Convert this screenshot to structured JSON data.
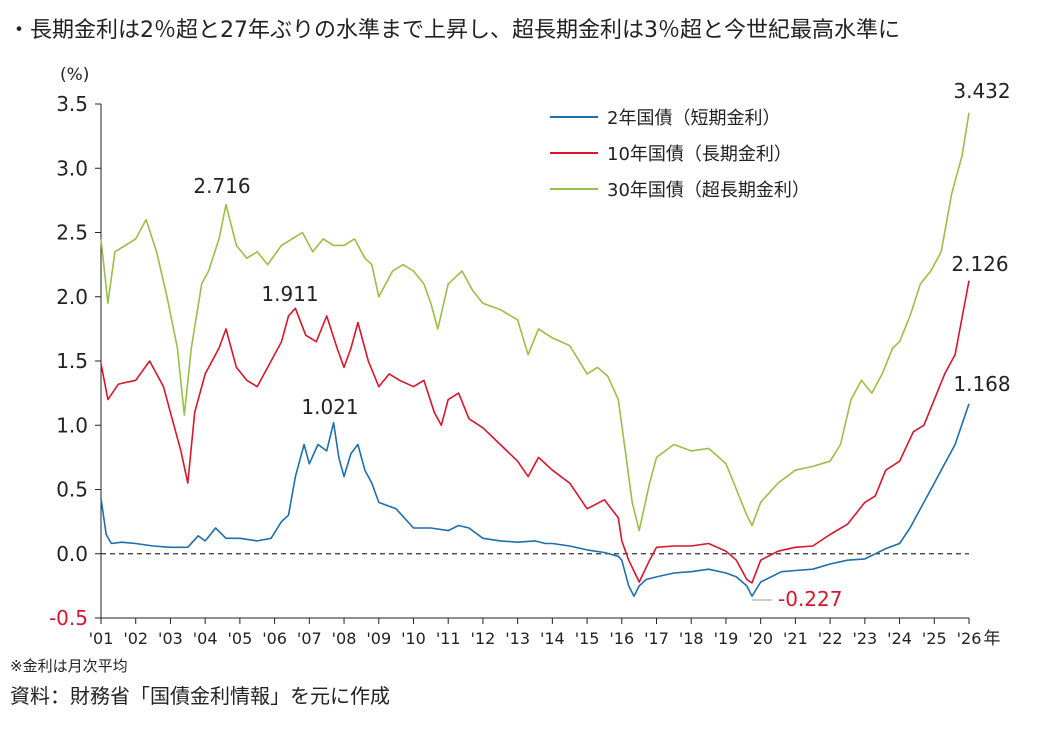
{
  "title": "・長期金利は2％超と27年ぶりの水準まで上昇し、超長期金利は3％超と今世紀最高水準に",
  "note": "※金利は月次平均",
  "source": "資料：財務省「国債金利情報」を元に作成",
  "colors": {
    "two_year": "#1f6fa8",
    "ten_year": "#d8152b",
    "thirty_year": "#98c045",
    "text": "#222222",
    "negative_label": "#d8152b"
  },
  "chart_data": {
    "type": "line",
    "ylabel": "(%)",
    "year_unit": "年",
    "ylim": [
      -0.5,
      3.5
    ],
    "yticks": [
      {
        "v": 3.5,
        "label": "3.5"
      },
      {
        "v": 3.0,
        "label": "3.0"
      },
      {
        "v": 2.5,
        "label": "2.5"
      },
      {
        "v": 2.0,
        "label": "2.0"
      },
      {
        "v": 1.5,
        "label": "1.5"
      },
      {
        "v": 1.0,
        "label": "1.0"
      },
      {
        "v": 0.5,
        "label": "0.5"
      },
      {
        "v": 0.0,
        "label": "0.0"
      },
      {
        "v": -0.5,
        "label": "-0.5"
      }
    ],
    "xlim": [
      2001,
      2026
    ],
    "xticks": [
      {
        "v": 2001,
        "label": "'01"
      },
      {
        "v": 2002,
        "label": "'02"
      },
      {
        "v": 2003,
        "label": "'03"
      },
      {
        "v": 2004,
        "label": "'04"
      },
      {
        "v": 2005,
        "label": "'05"
      },
      {
        "v": 2006,
        "label": "'06"
      },
      {
        "v": 2007,
        "label": "'07"
      },
      {
        "v": 2008,
        "label": "'08"
      },
      {
        "v": 2009,
        "label": "'09"
      },
      {
        "v": 2010,
        "label": "'10"
      },
      {
        "v": 2011,
        "label": "'11"
      },
      {
        "v": 2012,
        "label": "'12"
      },
      {
        "v": 2013,
        "label": "'13"
      },
      {
        "v": 2014,
        "label": "'14"
      },
      {
        "v": 2015,
        "label": "'15"
      },
      {
        "v": 2016,
        "label": "'16"
      },
      {
        "v": 2017,
        "label": "'17"
      },
      {
        "v": 2018,
        "label": "'18"
      },
      {
        "v": 2019,
        "label": "'19"
      },
      {
        "v": 2020,
        "label": "'20"
      },
      {
        "v": 2021,
        "label": "'21"
      },
      {
        "v": 2022,
        "label": "'22"
      },
      {
        "v": 2023,
        "label": "'23"
      },
      {
        "v": 2024,
        "label": "'24"
      },
      {
        "v": 2025,
        "label": "'25"
      },
      {
        "v": 2026,
        "label": "'26"
      }
    ],
    "zero_line": "dashed",
    "legend_position": "top-center",
    "series": [
      {
        "name": "2年国債（短期金利）",
        "key": "two_year",
        "points": [
          [
            2001.0,
            0.43
          ],
          [
            2001.15,
            0.15
          ],
          [
            2001.3,
            0.08
          ],
          [
            2001.6,
            0.09
          ],
          [
            2002.0,
            0.08
          ],
          [
            2002.5,
            0.06
          ],
          [
            2003.0,
            0.05
          ],
          [
            2003.5,
            0.05
          ],
          [
            2003.8,
            0.14
          ],
          [
            2004.0,
            0.1
          ],
          [
            2004.3,
            0.2
          ],
          [
            2004.6,
            0.12
          ],
          [
            2005.0,
            0.12
          ],
          [
            2005.5,
            0.1
          ],
          [
            2005.9,
            0.12
          ],
          [
            2006.2,
            0.25
          ],
          [
            2006.4,
            0.3
          ],
          [
            2006.6,
            0.6
          ],
          [
            2006.85,
            0.85
          ],
          [
            2007.0,
            0.7
          ],
          [
            2007.25,
            0.85
          ],
          [
            2007.5,
            0.8
          ],
          [
            2007.7,
            1.02
          ],
          [
            2007.85,
            0.75
          ],
          [
            2008.0,
            0.6
          ],
          [
            2008.2,
            0.78
          ],
          [
            2008.4,
            0.85
          ],
          [
            2008.6,
            0.65
          ],
          [
            2008.8,
            0.55
          ],
          [
            2009.0,
            0.4
          ],
          [
            2009.5,
            0.35
          ],
          [
            2010.0,
            0.2
          ],
          [
            2010.5,
            0.2
          ],
          [
            2011.0,
            0.18
          ],
          [
            2011.3,
            0.22
          ],
          [
            2011.6,
            0.2
          ],
          [
            2012.0,
            0.12
          ],
          [
            2012.5,
            0.1
          ],
          [
            2013.0,
            0.09
          ],
          [
            2013.5,
            0.1
          ],
          [
            2013.8,
            0.08
          ],
          [
            2014.0,
            0.08
          ],
          [
            2014.5,
            0.06
          ],
          [
            2015.0,
            0.03
          ],
          [
            2015.5,
            0.01
          ],
          [
            2015.9,
            -0.02
          ],
          [
            2016.0,
            -0.05
          ],
          [
            2016.2,
            -0.25
          ],
          [
            2016.35,
            -0.33
          ],
          [
            2016.5,
            -0.25
          ],
          [
            2016.7,
            -0.2
          ],
          [
            2017.0,
            -0.18
          ],
          [
            2017.5,
            -0.15
          ],
          [
            2018.0,
            -0.14
          ],
          [
            2018.5,
            -0.12
          ],
          [
            2019.0,
            -0.15
          ],
          [
            2019.3,
            -0.18
          ],
          [
            2019.6,
            -0.25
          ],
          [
            2019.75,
            -0.33
          ],
          [
            2020.0,
            -0.22
          ],
          [
            2020.3,
            -0.18
          ],
          [
            2020.6,
            -0.14
          ],
          [
            2021.0,
            -0.13
          ],
          [
            2021.5,
            -0.12
          ],
          [
            2022.0,
            -0.08
          ],
          [
            2022.5,
            -0.05
          ],
          [
            2023.0,
            -0.04
          ],
          [
            2023.3,
            0.0
          ],
          [
            2023.6,
            0.04
          ],
          [
            2024.0,
            0.08
          ],
          [
            2024.3,
            0.2
          ],
          [
            2024.6,
            0.35
          ],
          [
            2025.0,
            0.55
          ],
          [
            2025.3,
            0.7
          ],
          [
            2025.6,
            0.85
          ],
          [
            2026.0,
            1.168
          ]
        ]
      },
      {
        "name": "10年国債（長期金利）",
        "key": "ten_year",
        "points": [
          [
            2001.0,
            1.48
          ],
          [
            2001.2,
            1.2
          ],
          [
            2001.5,
            1.32
          ],
          [
            2002.0,
            1.35
          ],
          [
            2002.4,
            1.5
          ],
          [
            2002.8,
            1.3
          ],
          [
            2003.0,
            1.1
          ],
          [
            2003.3,
            0.8
          ],
          [
            2003.5,
            0.55
          ],
          [
            2003.7,
            1.1
          ],
          [
            2004.0,
            1.4
          ],
          [
            2004.4,
            1.6
          ],
          [
            2004.6,
            1.75
          ],
          [
            2004.9,
            1.45
          ],
          [
            2005.2,
            1.35
          ],
          [
            2005.5,
            1.3
          ],
          [
            2005.9,
            1.5
          ],
          [
            2006.2,
            1.65
          ],
          [
            2006.4,
            1.85
          ],
          [
            2006.6,
            1.91
          ],
          [
            2006.9,
            1.7
          ],
          [
            2007.2,
            1.65
          ],
          [
            2007.5,
            1.85
          ],
          [
            2007.8,
            1.6
          ],
          [
            2008.0,
            1.45
          ],
          [
            2008.2,
            1.6
          ],
          [
            2008.4,
            1.8
          ],
          [
            2008.7,
            1.5
          ],
          [
            2009.0,
            1.3
          ],
          [
            2009.3,
            1.4
          ],
          [
            2009.6,
            1.35
          ],
          [
            2010.0,
            1.3
          ],
          [
            2010.3,
            1.35
          ],
          [
            2010.6,
            1.1
          ],
          [
            2010.8,
            1.0
          ],
          [
            2011.0,
            1.2
          ],
          [
            2011.3,
            1.25
          ],
          [
            2011.6,
            1.05
          ],
          [
            2012.0,
            0.98
          ],
          [
            2012.5,
            0.85
          ],
          [
            2013.0,
            0.72
          ],
          [
            2013.3,
            0.6
          ],
          [
            2013.6,
            0.75
          ],
          [
            2014.0,
            0.65
          ],
          [
            2014.5,
            0.55
          ],
          [
            2015.0,
            0.35
          ],
          [
            2015.5,
            0.42
          ],
          [
            2015.9,
            0.28
          ],
          [
            2016.0,
            0.1
          ],
          [
            2016.2,
            -0.05
          ],
          [
            2016.5,
            -0.22
          ],
          [
            2016.8,
            -0.05
          ],
          [
            2017.0,
            0.05
          ],
          [
            2017.5,
            0.06
          ],
          [
            2018.0,
            0.06
          ],
          [
            2018.5,
            0.08
          ],
          [
            2019.0,
            0.02
          ],
          [
            2019.3,
            -0.05
          ],
          [
            2019.6,
            -0.2
          ],
          [
            2019.75,
            -0.227
          ],
          [
            2020.0,
            -0.05
          ],
          [
            2020.5,
            0.02
          ],
          [
            2021.0,
            0.05
          ],
          [
            2021.5,
            0.06
          ],
          [
            2022.0,
            0.15
          ],
          [
            2022.5,
            0.23
          ],
          [
            2023.0,
            0.4
          ],
          [
            2023.3,
            0.45
          ],
          [
            2023.6,
            0.65
          ],
          [
            2024.0,
            0.72
          ],
          [
            2024.4,
            0.95
          ],
          [
            2024.7,
            1.0
          ],
          [
            2025.0,
            1.2
          ],
          [
            2025.3,
            1.4
          ],
          [
            2025.6,
            1.55
          ],
          [
            2026.0,
            2.126
          ]
        ]
      },
      {
        "name": "30年国債（超長期金利）",
        "key": "thirty_year",
        "points": [
          [
            2001.0,
            2.45
          ],
          [
            2001.2,
            1.95
          ],
          [
            2001.4,
            2.35
          ],
          [
            2001.7,
            2.4
          ],
          [
            2002.0,
            2.45
          ],
          [
            2002.3,
            2.6
          ],
          [
            2002.6,
            2.35
          ],
          [
            2002.9,
            2.0
          ],
          [
            2003.2,
            1.6
          ],
          [
            2003.4,
            1.08
          ],
          [
            2003.6,
            1.6
          ],
          [
            2003.9,
            2.1
          ],
          [
            2004.1,
            2.2
          ],
          [
            2004.4,
            2.45
          ],
          [
            2004.6,
            2.716
          ],
          [
            2004.9,
            2.4
          ],
          [
            2005.2,
            2.3
          ],
          [
            2005.5,
            2.35
          ],
          [
            2005.8,
            2.25
          ],
          [
            2006.2,
            2.4
          ],
          [
            2006.5,
            2.45
          ],
          [
            2006.8,
            2.5
          ],
          [
            2007.1,
            2.35
          ],
          [
            2007.4,
            2.45
          ],
          [
            2007.7,
            2.4
          ],
          [
            2008.0,
            2.4
          ],
          [
            2008.3,
            2.45
          ],
          [
            2008.6,
            2.3
          ],
          [
            2008.8,
            2.25
          ],
          [
            2009.0,
            2.0
          ],
          [
            2009.4,
            2.2
          ],
          [
            2009.7,
            2.25
          ],
          [
            2010.0,
            2.2
          ],
          [
            2010.3,
            2.1
          ],
          [
            2010.5,
            1.95
          ],
          [
            2010.7,
            1.75
          ],
          [
            2011.0,
            2.1
          ],
          [
            2011.4,
            2.2
          ],
          [
            2011.7,
            2.05
          ],
          [
            2012.0,
            1.95
          ],
          [
            2012.5,
            1.9
          ],
          [
            2013.0,
            1.82
          ],
          [
            2013.3,
            1.55
          ],
          [
            2013.6,
            1.75
          ],
          [
            2014.0,
            1.68
          ],
          [
            2014.5,
            1.62
          ],
          [
            2015.0,
            1.4
          ],
          [
            2015.3,
            1.45
          ],
          [
            2015.6,
            1.38
          ],
          [
            2015.9,
            1.2
          ],
          [
            2016.1,
            0.8
          ],
          [
            2016.3,
            0.4
          ],
          [
            2016.5,
            0.18
          ],
          [
            2016.8,
            0.55
          ],
          [
            2017.0,
            0.75
          ],
          [
            2017.5,
            0.85
          ],
          [
            2018.0,
            0.8
          ],
          [
            2018.5,
            0.82
          ],
          [
            2018.8,
            0.75
          ],
          [
            2019.0,
            0.7
          ],
          [
            2019.3,
            0.5
          ],
          [
            2019.6,
            0.3
          ],
          [
            2019.75,
            0.22
          ],
          [
            2020.0,
            0.4
          ],
          [
            2020.5,
            0.55
          ],
          [
            2021.0,
            0.65
          ],
          [
            2021.5,
            0.68
          ],
          [
            2022.0,
            0.72
          ],
          [
            2022.3,
            0.85
          ],
          [
            2022.6,
            1.2
          ],
          [
            2022.9,
            1.35
          ],
          [
            2023.2,
            1.25
          ],
          [
            2023.5,
            1.4
          ],
          [
            2023.8,
            1.6
          ],
          [
            2024.0,
            1.65
          ],
          [
            2024.3,
            1.85
          ],
          [
            2024.6,
            2.1
          ],
          [
            2024.9,
            2.2
          ],
          [
            2025.2,
            2.35
          ],
          [
            2025.5,
            2.8
          ],
          [
            2025.8,
            3.1
          ],
          [
            2026.0,
            3.432
          ]
        ]
      }
    ],
    "annotations": [
      {
        "series": "two_year",
        "label": "1.021"
      },
      {
        "series": "ten_year",
        "label": "1.911"
      },
      {
        "series": "thirty_year",
        "label": "2.716"
      },
      {
        "series": "thirty_year",
        "label": "3.432"
      },
      {
        "series": "ten_year",
        "label": "2.126"
      },
      {
        "series": "two_year",
        "label": "1.168"
      },
      {
        "series": "ten_year",
        "label": "-0.227"
      }
    ]
  }
}
